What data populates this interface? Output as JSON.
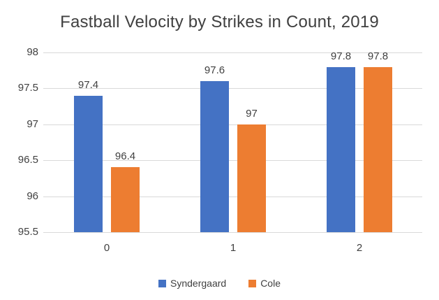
{
  "chart_data": {
    "type": "bar",
    "title": "Fastball Velocity by Strikes in Count, 2019",
    "xlabel": "",
    "ylabel": "",
    "ylim": [
      95.5,
      98
    ],
    "grid": true,
    "legend_position": "bottom",
    "categories": [
      {
        "label": "0"
      },
      {
        "label": "1"
      },
      {
        "label": "2"
      }
    ],
    "yticks": [
      {
        "label": "98",
        "value": 98
      },
      {
        "label": "97.5",
        "value": 97.5
      },
      {
        "label": "97",
        "value": 97
      },
      {
        "label": "96.5",
        "value": 96.5
      },
      {
        "label": "96",
        "value": 96
      },
      {
        "label": "95.5",
        "value": 95.5
      }
    ],
    "series": [
      {
        "name": "Syndergaard",
        "color": "#4472C4",
        "values": [
          97.4,
          97.6,
          97.8
        ],
        "value_labels": [
          "97.4",
          "97.6",
          "97.8"
        ]
      },
      {
        "name": "Cole",
        "color": "#ED7D31",
        "values": [
          96.4,
          97,
          97.8
        ],
        "value_labels": [
          "96.4",
          "97",
          "97.8"
        ]
      }
    ]
  }
}
